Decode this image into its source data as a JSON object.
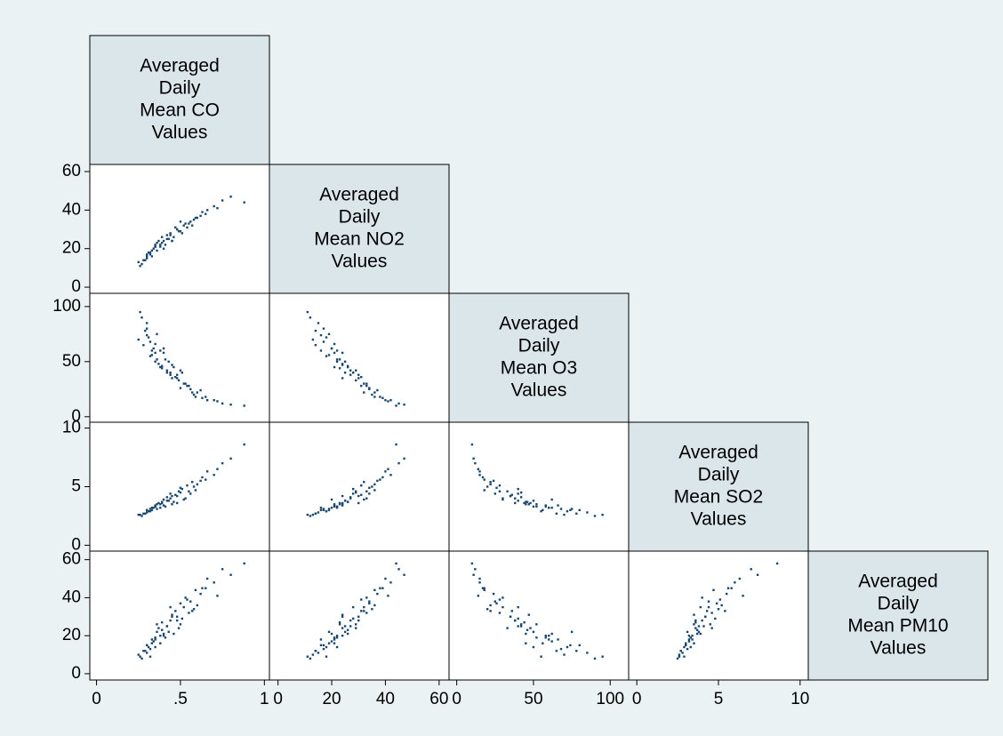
{
  "chart_data": {
    "type": "scatter_matrix",
    "color": "#1a476f",
    "variables": [
      {
        "label": [
          "Averaged",
          "Daily",
          "Mean CO",
          "Values"
        ],
        "lim": [
          -0.04,
          1.03
        ],
        "ticks": [
          0,
          {
            "value": 0.5,
            "label": ".5"
          },
          1
        ],
        "values": [
          0.25,
          0.28,
          0.3,
          0.32,
          0.33,
          0.35,
          0.36,
          0.38,
          0.4,
          0.42,
          0.3,
          0.34,
          0.37,
          0.41,
          0.44,
          0.46,
          0.48,
          0.5,
          0.52,
          0.55,
          0.27,
          0.31,
          0.35,
          0.39,
          0.43,
          0.47,
          0.51,
          0.56,
          0.6,
          0.65,
          0.29,
          0.33,
          0.38,
          0.42,
          0.45,
          0.49,
          0.53,
          0.58,
          0.62,
          0.7,
          0.26,
          0.32,
          0.36,
          0.4,
          0.44,
          0.48,
          0.54,
          0.59,
          0.66,
          0.75,
          0.3,
          0.35,
          0.39,
          0.45,
          0.5,
          0.57,
          0.63,
          0.72,
          0.8,
          0.88
        ]
      },
      {
        "label": [
          "Averaged",
          "Daily",
          "Mean NO2",
          "Values"
        ],
        "lim": [
          -3.2,
          63.7
        ],
        "ticks": [
          0,
          20,
          40,
          60
        ],
        "values": [
          13,
          14,
          17,
          18,
          16,
          22,
          19,
          21,
          24,
          25,
          15,
          20,
          24,
          22,
          27,
          26,
          30,
          29,
          32,
          33,
          12,
          18,
          21,
          23,
          25,
          31,
          28,
          34,
          36,
          38,
          14,
          19,
          22,
          27,
          24,
          29,
          33,
          35,
          37,
          42,
          11,
          17,
          23,
          20,
          28,
          30,
          31,
          36,
          40,
          45,
          16,
          21,
          26,
          24,
          34,
          32,
          39,
          41,
          47,
          44
        ]
      },
      {
        "label": [
          "Averaged",
          "Daily",
          "Mean O3",
          "Values"
        ],
        "lim": [
          -5,
          112
        ],
        "ticks": [
          0,
          50,
          100
        ],
        "values": [
          70,
          65,
          80,
          55,
          60,
          50,
          75,
          45,
          58,
          40,
          85,
          62,
          48,
          52,
          38,
          45,
          35,
          42,
          30,
          28,
          90,
          72,
          66,
          44,
          50,
          36,
          40,
          25,
          22,
          18,
          78,
          56,
          60,
          42,
          47,
          33,
          30,
          20,
          24,
          15,
          95,
          68,
          52,
          62,
          40,
          38,
          28,
          18,
          15,
          12,
          74,
          58,
          46,
          35,
          26,
          22,
          17,
          14,
          11,
          10
        ]
      },
      {
        "label": [
          "Averaged",
          "Daily",
          "Mean SO2",
          "Values"
        ],
        "lim": [
          -0.5,
          10.5
        ],
        "ticks": [
          0,
          5,
          10
        ],
        "values": [
          2.6,
          2.7,
          3.0,
          2.9,
          3.2,
          3.3,
          3.1,
          3.5,
          3.4,
          3.8,
          2.8,
          3.2,
          3.6,
          3.3,
          4.0,
          3.7,
          4.2,
          4.5,
          3.9,
          4.6,
          2.5,
          2.9,
          3.4,
          3.6,
          3.8,
          4.3,
          4.8,
          4.4,
          5.2,
          5.6,
          2.7,
          3.0,
          3.2,
          4.1,
          3.5,
          4.6,
          4.0,
          5.0,
          5.5,
          6.0,
          2.6,
          3.1,
          3.5,
          3.9,
          4.4,
          3.6,
          5.1,
          4.7,
          6.3,
          7.0,
          3.0,
          3.3,
          3.7,
          4.2,
          4.9,
          5.4,
          5.8,
          6.5,
          7.4,
          8.6
        ]
      },
      {
        "label": [
          "Averaged",
          "Daily",
          "Mean PM10",
          "Values"
        ],
        "lim": [
          -3.3,
          64.5
        ],
        "ticks": [
          0,
          20,
          40,
          60
        ],
        "values": [
          10,
          12,
          15,
          9,
          18,
          14,
          22,
          16,
          20,
          25,
          11,
          17,
          24,
          19,
          28,
          21,
          30,
          26,
          35,
          32,
          8,
          14,
          18,
          27,
          22,
          33,
          29,
          38,
          36,
          45,
          12,
          16,
          20,
          25,
          31,
          24,
          40,
          34,
          42,
          48,
          9,
          13,
          26,
          21,
          35,
          28,
          39,
          44,
          50,
          55,
          15,
          19,
          23,
          30,
          37,
          33,
          45,
          41,
          52,
          58
        ]
      }
    ]
  }
}
